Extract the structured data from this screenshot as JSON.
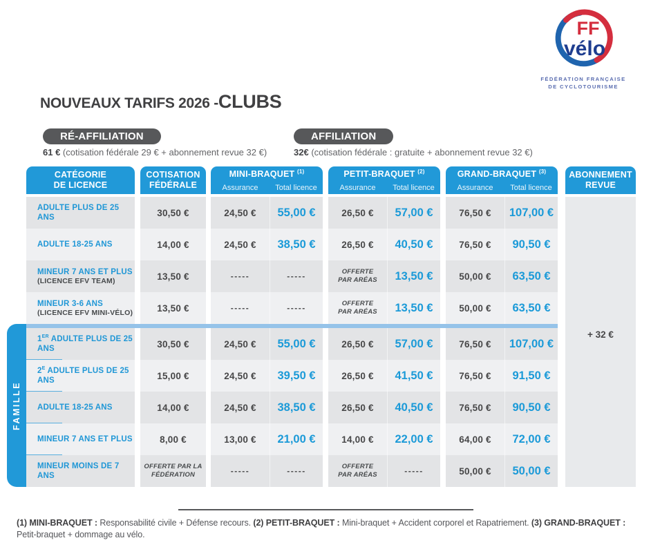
{
  "logo": {
    "ff": "FF",
    "velo": "vélo",
    "org_line1": "FÉDÉRATION FRANÇAISE",
    "org_line2": "DE CYCLOTOURISME",
    "ring_blue": "#1f64ae",
    "ring_red": "#d42e3e",
    "velo_navy": "#1e3d8f"
  },
  "title": {
    "prefix": "NOUVEAUX TARIFS 2026 - ",
    "suffix": "CLUBS"
  },
  "reaffiliation": {
    "badge": "RÉ-AFFILIATION",
    "price": "61 €",
    "details": " (cotisation fédérale 29 € + abonnement revue 32 €)"
  },
  "affiliation": {
    "badge": "AFFILIATION",
    "price": "32€",
    "details": " (cotisation fédérale : gratuite + abonnement revue 32 €)"
  },
  "table": {
    "accent_blue": "#2199d8",
    "headers": {
      "category_line1": "CATÉGORIE",
      "category_line2": "DE LICENCE",
      "cotisation_line1": "COTISATION",
      "cotisation_line2": "FÉDÉRALE",
      "mini": {
        "title": "MINI-BRAQUET",
        "sup": "(1)",
        "assurance": "Assurance",
        "total": "Total licence"
      },
      "petit": {
        "title": "PETIT-BRAQUET",
        "sup": "(2)",
        "assurance": "Assurance",
        "total": "Total licence"
      },
      "grand": {
        "title": "GRAND-BRAQUET",
        "sup": "(3)",
        "assurance": "Assurance",
        "total": "Total licence"
      },
      "abonnement_line1": "ABONNEMENT",
      "abonnement_line2": "REVUE"
    },
    "famille_label": "FAMILLE",
    "abonnement_value": "+ 32 €",
    "rows": [
      {
        "cat_pre": "",
        "cat_sup": "",
        "category": "ADULTE PLUS DE 25 ANS",
        "category_sub": "",
        "cotisation": "30,50 €",
        "mini_assurance": "24,50 €",
        "mini_total": "55,00 €",
        "petit_assurance": "26,50 €",
        "petit_total": "57,00 €",
        "grand_assurance": "76,50 €",
        "grand_total": "107,00 €",
        "famille": false
      },
      {
        "cat_pre": "",
        "cat_sup": "",
        "category": "ADULTE 18-25 ANS",
        "category_sub": "",
        "cotisation": "14,00 €",
        "mini_assurance": "24,50 €",
        "mini_total": "38,50 €",
        "petit_assurance": "26,50 €",
        "petit_total": "40,50 €",
        "grand_assurance": "76,50 €",
        "grand_total": "90,50 €",
        "famille": false
      },
      {
        "cat_pre": "",
        "cat_sup": "",
        "category": "MINEUR 7 ANS ET PLUS",
        "category_sub": "(LICENCE EFV TEAM)",
        "cotisation": "13,50 €",
        "mini_assurance": "-----",
        "mini_total": "-----",
        "petit_assurance": "OFFERTE\nPAR ARÉAS",
        "petit_total": "13,50 €",
        "grand_assurance": "50,00 €",
        "grand_total": "63,50 €",
        "famille": false
      },
      {
        "cat_pre": "",
        "cat_sup": "",
        "category": "MINEUR 3-6 ANS",
        "category_sub": "(LICENCE EFV MINI-VÉLO)",
        "cotisation": "13,50 €",
        "mini_assurance": "-----",
        "mini_total": "-----",
        "petit_assurance": "OFFERTE\nPAR ARÉAS",
        "petit_total": "13,50 €",
        "grand_assurance": "50,00 €",
        "grand_total": "63,50 €",
        "famille": false
      },
      {
        "cat_pre": "1",
        "cat_sup": "ER",
        "category": " ADULTE PLUS DE 25 ANS",
        "category_sub": "",
        "cotisation": "30,50 €",
        "mini_assurance": "24,50 €",
        "mini_total": "55,00 €",
        "petit_assurance": "26,50 €",
        "petit_total": "57,00 €",
        "grand_assurance": "76,50 €",
        "grand_total": "107,00 €",
        "famille": true
      },
      {
        "cat_pre": "2",
        "cat_sup": "E",
        "category": " ADULTE PLUS DE 25 ANS",
        "category_sub": "",
        "cotisation": "15,00 €",
        "mini_assurance": "24,50 €",
        "mini_total": "39,50 €",
        "petit_assurance": "26,50 €",
        "petit_total": "41,50 €",
        "grand_assurance": "76,50 €",
        "grand_total": "91,50 €",
        "famille": true
      },
      {
        "cat_pre": "",
        "cat_sup": "",
        "category": "ADULTE 18-25 ANS",
        "category_sub": "",
        "cotisation": "14,00 €",
        "mini_assurance": "24,50 €",
        "mini_total": "38,50 €",
        "petit_assurance": "26,50 €",
        "petit_total": "40,50 €",
        "grand_assurance": "76,50 €",
        "grand_total": "90,50 €",
        "famille": true
      },
      {
        "cat_pre": "",
        "cat_sup": "",
        "category": "MINEUR 7 ANS ET PLUS",
        "category_sub": "",
        "cotisation": "8,00 €",
        "mini_assurance": "13,00 €",
        "mini_total": "21,00 €",
        "petit_assurance": "14,00 €",
        "petit_total": "22,00 €",
        "grand_assurance": "64,00 €",
        "grand_total": "72,00 €",
        "famille": true
      },
      {
        "cat_pre": "",
        "cat_sup": "",
        "category": "MINEUR MOINS DE 7 ANS",
        "category_sub": "",
        "cotisation": "OFFERTE PAR LA\nFÉDÉRATION",
        "mini_assurance": "-----",
        "mini_total": "-----",
        "petit_assurance": "OFFERTE\nPAR ARÉAS",
        "petit_total": "-----",
        "grand_assurance": "50,00 €",
        "grand_total": "50,00 €",
        "famille": true
      }
    ]
  },
  "footnote": {
    "parts": [
      {
        "label": "(1) MINI-BRAQUET : ",
        "text": "Responsabilité civile + Défense recours. "
      },
      {
        "label": "(2) PETIT-BRAQUET : ",
        "text": "Mini-braquet + Accident corporel et Rapatriement. "
      },
      {
        "label": "(3) GRAND-BRAQUET : ",
        "text": "Petit-braquet + dommage au vélo."
      }
    ]
  }
}
